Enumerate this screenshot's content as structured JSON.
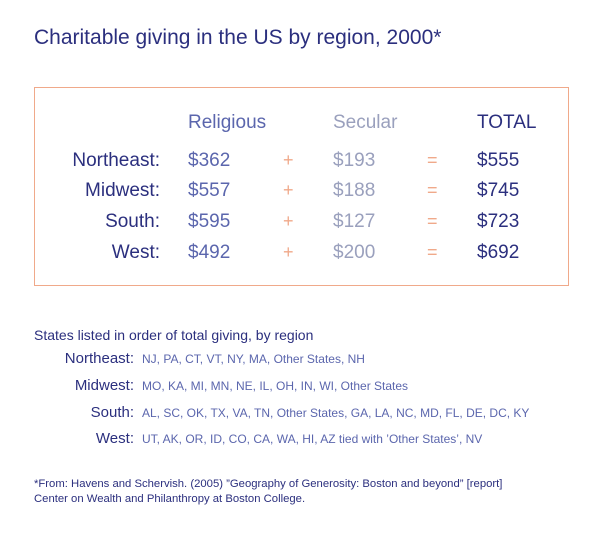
{
  "title": "Charitable giving in the US by region, 2000*",
  "table": {
    "headers": {
      "religious": "Religious",
      "secular": "Secular",
      "total": "TOTAL"
    },
    "plus": "+",
    "equals": "="
  },
  "chart_data": {
    "type": "table",
    "title": "Charitable giving in the US by region, 2000*",
    "columns": [
      "Religious",
      "Secular",
      "TOTAL"
    ],
    "rows": [
      {
        "region": "Northeast:",
        "religious": "$362",
        "secular": "$193",
        "total": "$555"
      },
      {
        "region": "Midwest:",
        "religious": "$557",
        "secular": "$188",
        "total": "$745"
      },
      {
        "region": "South:",
        "religious": "$595",
        "secular": "$127",
        "total": "$723"
      },
      {
        "region": "West:",
        "religious": "$492",
        "secular": "$200",
        "total": "$692"
      }
    ]
  },
  "states": {
    "title": "States listed in order of total giving, by region",
    "rows": [
      {
        "region": "Northeast:",
        "list": "NJ, PA, CT, VT, NY, MA, Other States, NH"
      },
      {
        "region": "Midwest:",
        "list": "MO, KA, MI, MN, NE, IL, OH, IN, WI, Other States"
      },
      {
        "region": "South:",
        "list": "AL, SC, OK, TX, VA, TN, Other States, GA, LA, NC, MD, FL, DE, DC, KY"
      },
      {
        "region": "West:",
        "list": "UT, AK, OR, ID, CO, CA, WA, HI, AZ tied with ’Other States’, NV"
      }
    ]
  },
  "footnote": {
    "line1": "*From: Havens and Schervish. (2005) ”Geography of Generosity: Boston and beyond” [report]",
    "line2": "Center on Wealth and Philanthropy at Boston College."
  }
}
